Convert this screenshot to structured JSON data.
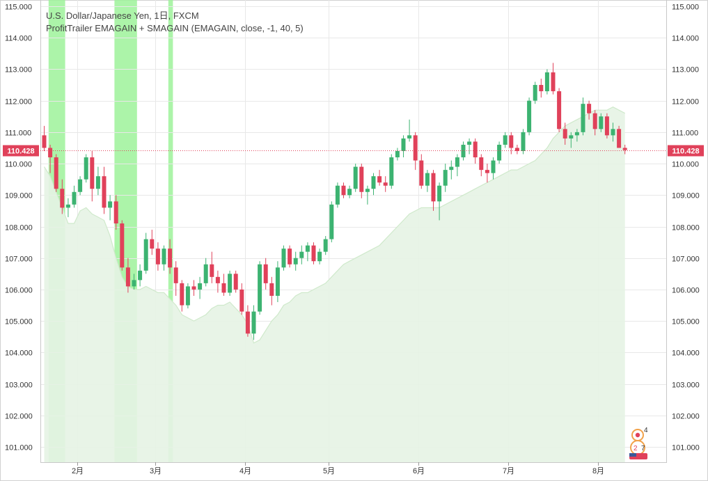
{
  "header": {
    "title": "U.S. Dollar/Japanese Yen, 1日, FXCM",
    "indicator": "ProfitTrailer EMAGAIN + SMAGAIN (EMAGAIN, close, -1, 40, 5)"
  },
  "last_price": "110.428",
  "colors": {
    "up": "#3cb371",
    "down": "#e0415a",
    "band": "#9ef29a",
    "area_fill": "#e6f3e4",
    "area_line": "#cfe9cb",
    "grid": "#e8e8e8",
    "price_line": "#e0415a"
  },
  "chart_data": {
    "type": "candlestick",
    "title": "U.S. Dollar/Japanese Yen, 1日, FXCM",
    "y_ticks": [
      "115.000",
      "114.000",
      "113.000",
      "112.000",
      "111.000",
      "110.000",
      "109.000",
      "108.000",
      "107.000",
      "106.000",
      "105.000",
      "104.000",
      "103.000",
      "102.000",
      "101.000"
    ],
    "ylim": [
      100.1,
      115.2
    ],
    "x_ticks": [
      "2月",
      "3月",
      "4月",
      "5月",
      "6月",
      "7月",
      "8月"
    ],
    "candles": [
      [
        110.9,
        111.2,
        110.4,
        110.5
      ],
      [
        110.5,
        110.6,
        109.7,
        110.2
      ],
      [
        110.2,
        110.3,
        109.1,
        109.2
      ],
      [
        109.2,
        109.5,
        108.4,
        108.6
      ],
      [
        108.6,
        108.9,
        108.3,
        108.7
      ],
      [
        108.7,
        109.3,
        108.6,
        109.1
      ],
      [
        109.1,
        109.6,
        109.0,
        109.5
      ],
      [
        109.5,
        110.3,
        109.4,
        110.2
      ],
      [
        110.2,
        110.4,
        108.8,
        109.2
      ],
      [
        109.2,
        109.9,
        109.0,
        109.6
      ],
      [
        109.6,
        109.9,
        108.4,
        108.6
      ],
      [
        108.6,
        109.0,
        108.2,
        108.8
      ],
      [
        108.8,
        109.0,
        107.9,
        108.1
      ],
      [
        108.1,
        108.2,
        106.6,
        106.7
      ],
      [
        106.7,
        107.0,
        105.9,
        106.1
      ],
      [
        106.1,
        106.5,
        106.0,
        106.3
      ],
      [
        106.3,
        106.8,
        106.1,
        106.6
      ],
      [
        106.6,
        107.8,
        106.5,
        107.6
      ],
      [
        107.6,
        107.9,
        107.1,
        107.3
      ],
      [
        107.3,
        107.5,
        106.6,
        106.8
      ],
      [
        106.8,
        107.4,
        106.6,
        107.3
      ],
      [
        107.3,
        107.6,
        106.5,
        106.7
      ],
      [
        106.7,
        106.9,
        105.8,
        106.2
      ],
      [
        106.2,
        106.3,
        105.3,
        105.5
      ],
      [
        105.5,
        106.2,
        105.4,
        106.1
      ],
      [
        106.1,
        106.3,
        105.8,
        106.0
      ],
      [
        106.0,
        106.4,
        105.7,
        106.2
      ],
      [
        106.2,
        107.0,
        106.1,
        106.8
      ],
      [
        106.8,
        107.2,
        106.2,
        106.4
      ],
      [
        106.4,
        106.6,
        105.9,
        106.2
      ],
      [
        106.2,
        106.5,
        105.8,
        105.9
      ],
      [
        105.9,
        106.6,
        105.8,
        106.5
      ],
      [
        106.5,
        106.6,
        105.9,
        106.0
      ],
      [
        106.0,
        106.2,
        105.2,
        105.3
      ],
      [
        105.3,
        105.5,
        104.5,
        104.6
      ],
      [
        104.6,
        105.5,
        104.4,
        105.3
      ],
      [
        105.3,
        106.9,
        105.2,
        106.8
      ],
      [
        106.8,
        107.0,
        106.0,
        106.2
      ],
      [
        106.2,
        106.4,
        105.5,
        105.8
      ],
      [
        105.8,
        106.9,
        105.6,
        106.7
      ],
      [
        106.7,
        107.4,
        106.6,
        107.3
      ],
      [
        107.3,
        107.4,
        106.7,
        106.8
      ],
      [
        106.8,
        107.2,
        106.6,
        107.0
      ],
      [
        107.0,
        107.4,
        106.8,
        107.2
      ],
      [
        107.2,
        107.5,
        106.9,
        107.4
      ],
      [
        107.4,
        107.5,
        106.8,
        106.9
      ],
      [
        106.9,
        107.3,
        106.8,
        107.2
      ],
      [
        107.2,
        107.7,
        107.1,
        107.6
      ],
      [
        107.6,
        108.8,
        107.5,
        108.7
      ],
      [
        108.7,
        109.4,
        108.6,
        109.3
      ],
      [
        109.3,
        109.4,
        108.9,
        109.0
      ],
      [
        109.0,
        109.3,
        108.9,
        109.2
      ],
      [
        109.2,
        110.0,
        109.1,
        109.9
      ],
      [
        109.9,
        110.0,
        108.9,
        109.1
      ],
      [
        109.1,
        109.3,
        108.7,
        109.2
      ],
      [
        109.2,
        109.7,
        109.0,
        109.6
      ],
      [
        109.6,
        109.8,
        109.3,
        109.4
      ],
      [
        109.4,
        109.6,
        109.1,
        109.3
      ],
      [
        109.3,
        110.3,
        109.2,
        110.2
      ],
      [
        110.2,
        110.5,
        110.1,
        110.4
      ],
      [
        110.4,
        110.9,
        110.2,
        110.8
      ],
      [
        110.8,
        111.4,
        110.7,
        110.9
      ],
      [
        110.9,
        111.0,
        109.8,
        110.1
      ],
      [
        110.1,
        110.3,
        109.2,
        109.3
      ],
      [
        109.3,
        109.8,
        109.1,
        109.7
      ],
      [
        109.7,
        109.8,
        108.5,
        108.8
      ],
      [
        108.8,
        109.4,
        108.2,
        109.3
      ],
      [
        109.3,
        110.0,
        109.1,
        109.8
      ],
      [
        109.8,
        110.1,
        109.5,
        109.9
      ],
      [
        109.9,
        110.3,
        109.6,
        110.2
      ],
      [
        110.2,
        110.7,
        110.1,
        110.6
      ],
      [
        110.6,
        110.8,
        110.3,
        110.7
      ],
      [
        110.7,
        110.8,
        110.0,
        110.2
      ],
      [
        110.2,
        110.3,
        109.6,
        109.8
      ],
      [
        109.8,
        110.0,
        109.4,
        109.7
      ],
      [
        109.7,
        110.2,
        109.5,
        110.1
      ],
      [
        110.1,
        110.7,
        110.0,
        110.6
      ],
      [
        110.6,
        111.0,
        110.5,
        110.9
      ],
      [
        110.9,
        111.0,
        110.3,
        110.5
      ],
      [
        110.5,
        110.6,
        110.3,
        110.4
      ],
      [
        110.4,
        111.1,
        110.3,
        111.0
      ],
      [
        111.0,
        112.1,
        110.9,
        112.0
      ],
      [
        112.0,
        112.6,
        111.9,
        112.5
      ],
      [
        112.5,
        112.7,
        112.1,
        112.3
      ],
      [
        112.3,
        113.0,
        112.2,
        112.9
      ],
      [
        112.9,
        113.2,
        112.2,
        112.3
      ],
      [
        112.3,
        112.4,
        111.0,
        111.1
      ],
      [
        111.1,
        111.3,
        110.6,
        110.8
      ],
      [
        110.8,
        111.0,
        110.5,
        110.9
      ],
      [
        110.9,
        111.1,
        110.7,
        111.0
      ],
      [
        111.0,
        112.1,
        110.9,
        111.9
      ],
      [
        111.9,
        112.0,
        111.4,
        111.6
      ],
      [
        111.6,
        111.7,
        110.9,
        111.1
      ],
      [
        111.1,
        111.6,
        111.0,
        111.5
      ],
      [
        111.5,
        111.6,
        110.8,
        110.9
      ],
      [
        110.9,
        111.3,
        110.7,
        111.1
      ],
      [
        111.1,
        111.2,
        110.5,
        110.5
      ],
      [
        110.5,
        110.6,
        110.3,
        110.43
      ]
    ],
    "indicator_area": [
      109.9,
      109.6,
      109.1,
      108.6,
      108.1,
      108.1,
      108.5,
      108.6,
      108.4,
      108.3,
      108.2,
      107.7,
      107.0,
      106.4,
      106.1,
      106.0,
      106.0,
      106.1,
      106.0,
      105.9,
      105.9,
      105.7,
      105.5,
      105.2,
      105.1,
      105.0,
      105.1,
      105.2,
      105.4,
      105.5,
      105.5,
      105.6,
      105.4,
      105.2,
      104.9,
      104.3,
      104.4,
      104.7,
      105.0,
      105.2,
      105.5,
      105.6,
      105.8,
      105.9,
      105.9,
      106.0,
      106.1,
      106.2,
      106.4,
      106.6,
      106.8,
      106.9,
      107.0,
      107.1,
      107.2,
      107.3,
      107.4,
      107.6,
      107.8,
      108.0,
      108.2,
      108.4,
      108.5,
      108.6,
      108.6,
      108.6,
      108.6,
      108.7,
      108.8,
      108.9,
      109.0,
      109.1,
      109.2,
      109.3,
      109.4,
      109.5,
      109.6,
      109.7,
      109.8,
      109.8,
      109.9,
      110.0,
      110.1,
      110.3,
      110.5,
      110.8,
      111.0,
      111.2,
      111.3,
      111.4,
      111.5,
      111.6,
      111.7,
      111.7,
      111.7,
      111.8,
      111.7,
      111.6
    ],
    "highlight_bands": [
      [
        1,
        3
      ],
      [
        12,
        15
      ],
      [
        21,
        21
      ]
    ]
  }
}
